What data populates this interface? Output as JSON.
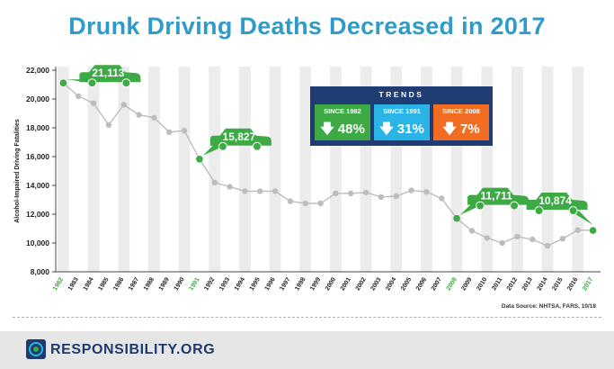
{
  "title": "Drunk Driving Deaths Decreased in 2017",
  "source": "Data Source: NHTSA, FARS, 10/18",
  "brand": "RESPONSIBILITY.ORG",
  "colors": {
    "title": "#2f9bc9",
    "line": "#bdbdbd",
    "point": "#bdbdbd",
    "highlight": "#3daa45",
    "band": "#ececec",
    "navy": "#1f3d73",
    "trend_green": "#3daa45",
    "trend_blue": "#2ab5e6",
    "trend_orange": "#f26d21"
  },
  "trends": {
    "heading": "TRENDS",
    "items": [
      {
        "label": "SINCE 1982",
        "value": "48%",
        "arrow": "down-arrow-icon",
        "color": "#3daa45"
      },
      {
        "label": "SINCE 1991",
        "value": "31%",
        "arrow": "down-arrow-icon",
        "color": "#2ab5e6"
      },
      {
        "label": "SINCE 2008",
        "value": "7%",
        "arrow": "down-arrow-icon",
        "color": "#f26d21"
      }
    ]
  },
  "chart_data": {
    "type": "line",
    "title": "Drunk Driving Deaths Decreased in 2017",
    "ylabel": "Alcohol-Impaired Driving Fatalities",
    "xlabel": "",
    "ylim": [
      8000,
      22000
    ],
    "yticks": [
      "8,000",
      "10,000",
      "12,000",
      "14,000",
      "16,000",
      "18,000",
      "20,000",
      "22,000"
    ],
    "grid": false,
    "x": [
      "1982",
      "1983",
      "1984",
      "1985",
      "1986",
      "1987",
      "1988",
      "1989",
      "1990",
      "1991",
      "1992",
      "1993",
      "1994",
      "1995",
      "1996",
      "1997",
      "1998",
      "1999",
      "2000",
      "2001",
      "2002",
      "2003",
      "2004",
      "2005",
      "2006",
      "2007",
      "2008",
      "2009",
      "2010",
      "2011",
      "2012",
      "2013",
      "2014",
      "2015",
      "2016",
      "2017"
    ],
    "values": [
      21113,
      20200,
      19700,
      18200,
      19600,
      18900,
      18700,
      17700,
      17800,
      15827,
      14200,
      13900,
      13600,
      13600,
      13600,
      12900,
      12750,
      12750,
      13450,
      13450,
      13500,
      13200,
      13250,
      13650,
      13550,
      13100,
      11711,
      10850,
      10350,
      10000,
      10450,
      10250,
      9800,
      10300,
      10900,
      10874
    ],
    "highlight_years": [
      "1982",
      "1991",
      "2008",
      "2017"
    ],
    "callouts": [
      {
        "year": "1982",
        "label": "21,113",
        "icon": "car-icon"
      },
      {
        "year": "1991",
        "label": "15,827",
        "icon": "car-icon"
      },
      {
        "year": "2008",
        "label": "11,711",
        "icon": "car-icon"
      },
      {
        "year": "2017",
        "label": "10,874",
        "icon": "car-icon"
      }
    ]
  }
}
